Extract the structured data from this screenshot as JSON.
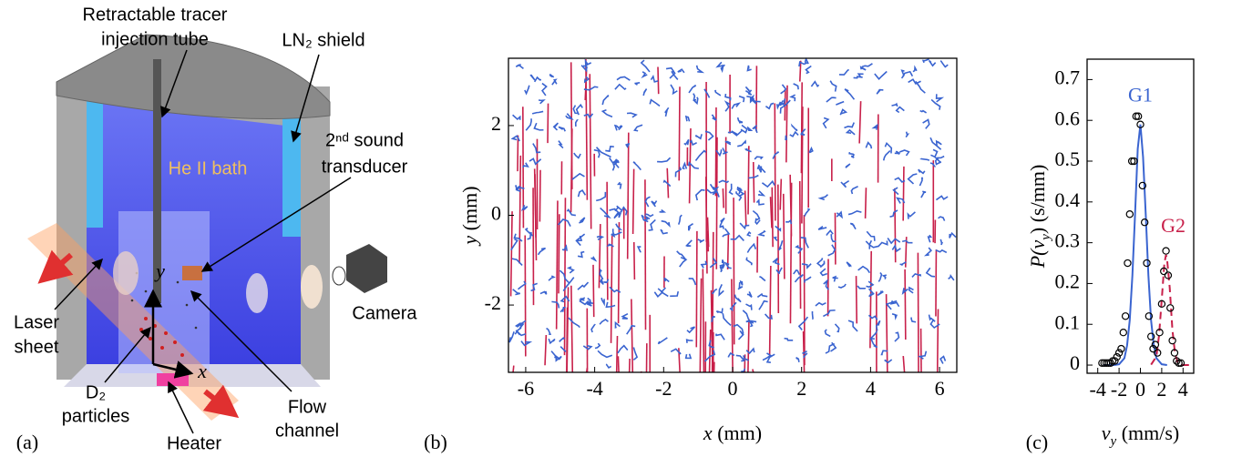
{
  "diagram": {
    "panel_label": "(a)",
    "tube_label": [
      "Retractable tracer",
      "injection tube"
    ],
    "shield_label": "LN₂ shield",
    "bath_label": "He II bath",
    "transducer_label": [
      "2ⁿᵈ sound",
      "transducer"
    ],
    "camera_label": "Camera",
    "laser_label": [
      "Laser",
      "sheet"
    ],
    "particles_label": [
      "D₂",
      "particles"
    ],
    "heater_label": "Heater",
    "channel_label": [
      "Flow",
      "channel"
    ],
    "axis_x": "x",
    "axis_y": "y"
  },
  "chart_data": [
    {
      "type": "trajectories",
      "panel_label": "(b)",
      "x_label": {
        "main": "x",
        "end": " (mm)"
      },
      "y_label": {
        "main": "y",
        "end": " (mm)"
      },
      "xlim": [
        -6.5,
        6.5
      ],
      "xticks": [
        -6,
        -4,
        -2,
        0,
        2,
        4,
        6
      ],
      "ylim": [
        -3.5,
        3.5
      ],
      "yticks": [
        -2,
        0,
        2
      ],
      "colors": [
        "#c8204a",
        "#3a64d0"
      ]
    },
    {
      "type": "scatter",
      "panel_label": "(c)",
      "x_label": {
        "main": "v",
        "sub": "y",
        "end": "  (mm/s)"
      },
      "y_label": {
        "main": "P(v",
        "sub": "y",
        "end": ")  (s/mm)"
      },
      "xlim": [
        -5,
        5
      ],
      "xticks": [
        -4,
        -2,
        0,
        2,
        4
      ],
      "ylim": [
        -0.02,
        0.75
      ],
      "yticks": [
        0,
        0.1,
        0.2,
        0.3,
        0.4,
        0.5,
        0.6,
        0.7
      ],
      "series": [
        {
          "name": "G1",
          "color": "#3a64d0",
          "style": "solid",
          "x": [
            -3.5,
            -3,
            -2.5,
            -2,
            -1.5,
            -1.25,
            -1,
            -0.75,
            -0.5,
            -0.25,
            0,
            0.25,
            0.5,
            0.75,
            1,
            1.25,
            1.5,
            2,
            2.5
          ],
          "values": [
            0,
            0,
            0,
            0.002,
            0.017,
            0.048,
            0.11,
            0.22,
            0.37,
            0.53,
            0.59,
            0.51,
            0.37,
            0.22,
            0.11,
            0.05,
            0.017,
            0.002,
            0
          ]
        },
        {
          "name": "G2",
          "color": "#c8204a",
          "style": "dashed",
          "x": [
            1,
            1.5,
            1.75,
            2,
            2.25,
            2.4,
            2.5,
            2.75,
            3,
            3.25,
            3.5,
            4,
            5
          ],
          "values": [
            0.001,
            0.021,
            0.073,
            0.16,
            0.25,
            0.27,
            0.26,
            0.19,
            0.087,
            0.028,
            0.006,
            0,
            0
          ]
        },
        {
          "color": "#000000",
          "style": "markers",
          "x": [
            -3.6,
            -3.4,
            -3.2,
            -3,
            -2.8,
            -2.6,
            -2.4,
            -2.2,
            -2,
            -1.8,
            -1.6,
            -1.4,
            -1.2,
            -1,
            -0.8,
            -0.6,
            -0.4,
            -0.2,
            0,
            0.2,
            0.4,
            0.6,
            0.8,
            1,
            1.2,
            1.4,
            1.6,
            1.8,
            2,
            2.2,
            2.4,
            2.6,
            2.8,
            3,
            3.2,
            3.4,
            3.6,
            3.8
          ],
          "values": [
            0.005,
            0.005,
            0.005,
            0.005,
            0.005,
            0.01,
            0.01,
            0.02,
            0.03,
            0.04,
            0.08,
            0.12,
            0.25,
            0.37,
            0.5,
            0.5,
            0.61,
            0.61,
            0.59,
            0.44,
            0.35,
            0.25,
            0.12,
            0.07,
            0.04,
            0.05,
            0.03,
            0.08,
            0.15,
            0.23,
            0.28,
            0.22,
            0.14,
            0.06,
            0.03,
            0.01,
            0.005,
            0.005
          ]
        }
      ]
    }
  ]
}
